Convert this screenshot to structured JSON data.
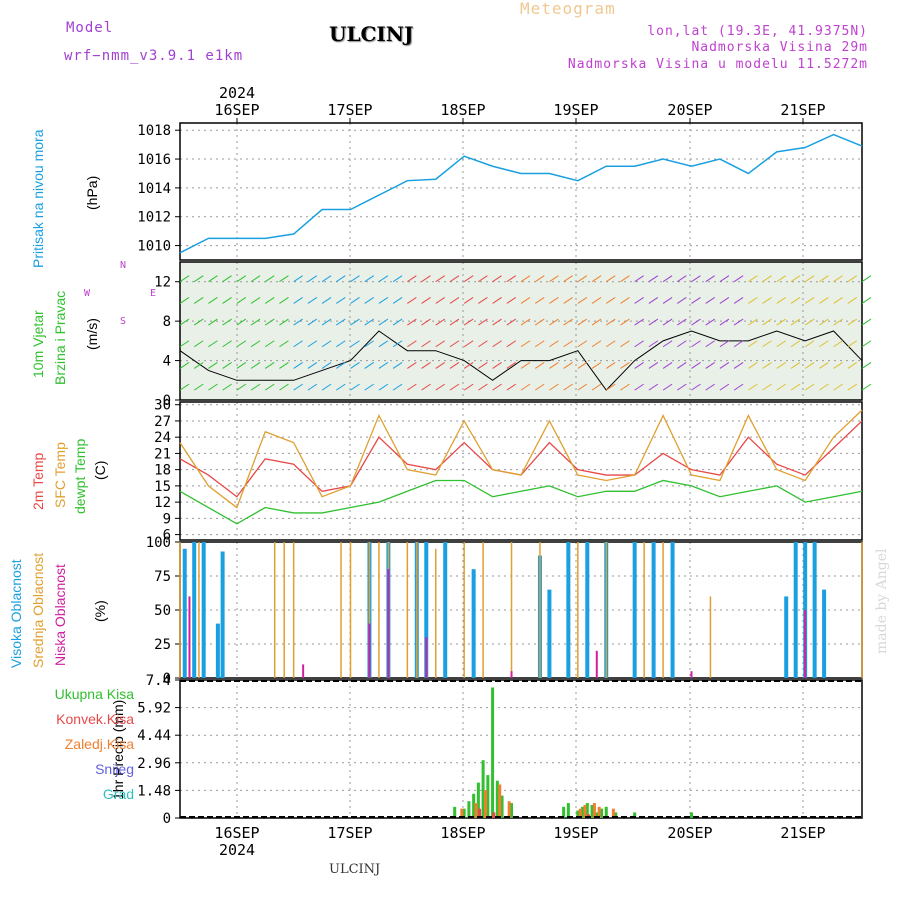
{
  "header": {
    "model_label": "Model",
    "model_name": "wrf−nmm_v3.9.1 e1km",
    "station": "ULCINJ",
    "product": "Meteogram",
    "lonlat": "lon,lat (19.3E, 41.9375N)",
    "altitude": "Nadmorska Visina 29m",
    "model_altitude": "Nadmorska Visina u modelu 11.5272m",
    "credit": "made by Angel",
    "footer_station": "ULCINJ"
  },
  "time_axis": {
    "year": "2024",
    "days": [
      "16SEP",
      "17SEP",
      "18SEP",
      "19SEP",
      "20SEP",
      "21SEP"
    ]
  },
  "colors": {
    "pressure": "#1aa0e0",
    "t2m": "#e84848",
    "tsfc": "#e0a030",
    "dewpt": "#30c030",
    "high": "#1aa0e0",
    "mid": "#e0a030",
    "low": "#d020a0",
    "wind_bg": "#e8f0e8"
  },
  "panels": {
    "pressure": {
      "label": "Pritisak na nivou mora",
      "unit": "(hPa)",
      "ticks": [
        "1010",
        "1012",
        "1014",
        "1016",
        "1018"
      ]
    },
    "wind": {
      "label1": "10m Vjetar",
      "label2": "Brzina i Pravac",
      "unit": "(m/s)",
      "ticks": [
        "0",
        "4",
        "8",
        "12"
      ],
      "compass": {
        "n": "N",
        "s": "S",
        "e": "E",
        "w": "W"
      }
    },
    "temp": {
      "label_t2m": "2m Temp",
      "label_sfc": "SFC Temp",
      "label_dew": "dewpt Temp",
      "unit": "(C)",
      "ticks": [
        "6",
        "9",
        "12",
        "15",
        "18",
        "21",
        "24",
        "27",
        "30"
      ]
    },
    "cloud": {
      "label_high": "Visoka Oblacnost",
      "label_mid": "Srednja Oblacnost",
      "label_low": "Niska Oblacnost",
      "unit": "(%)",
      "ticks": [
        "0",
        "25",
        "50",
        "75",
        "100"
      ]
    },
    "precip": {
      "unit_label": "1hr Precip (mm)",
      "ticks": [
        "0",
        "1.48",
        "2.96",
        "4.44",
        "5.92",
        "7.4"
      ],
      "legend": [
        "Ukupna Kisa",
        "Konvek.Kisa",
        "Zaledj.Kisa",
        "Snijeg",
        "Grad"
      ],
      "legend_colors": [
        "#30c030",
        "#e84848",
        "#f08030",
        "#6060e0",
        "#30c0c0"
      ]
    }
  },
  "chart_data": [
    {
      "type": "line",
      "title": "Pritisak na nivou mora",
      "ylabel": "(hPa)",
      "ylim": [
        1009,
        1018.5
      ],
      "series": [
        {
          "name": "Pritisak na nivou mora",
          "x": [
            0,
            6,
            12,
            18,
            24,
            30,
            36,
            42,
            48,
            54,
            60,
            66,
            72,
            78,
            84,
            90,
            96,
            102,
            108,
            114,
            120,
            126,
            132,
            138,
            144
          ],
          "values": [
            1009.5,
            1010.5,
            1010.5,
            1010.5,
            1010.8,
            1012.5,
            1012.5,
            1013.5,
            1014.5,
            1014.6,
            1016.2,
            1015.5,
            1015.0,
            1015.0,
            1014.5,
            1015.5,
            1015.5,
            1016.0,
            1015.5,
            1016.0,
            1015.0,
            1016.5,
            1016.8,
            1017.7,
            1016.9
          ]
        }
      ]
    },
    {
      "type": "line",
      "title": "10m Vjetar Brzina i Pravac",
      "ylabel": "(m/s)",
      "ylim": [
        0,
        14
      ],
      "series": [
        {
          "name": "10m Vjetar",
          "x": [
            0,
            6,
            12,
            18,
            24,
            30,
            36,
            42,
            48,
            54,
            60,
            66,
            72,
            78,
            84,
            90,
            96,
            102,
            108,
            114,
            120,
            126,
            132,
            138,
            144
          ],
          "values": [
            5,
            3,
            2,
            2,
            2,
            3,
            4,
            7,
            5,
            5,
            4,
            2,
            4,
            4,
            5,
            1,
            4,
            6,
            7,
            6,
            6,
            7,
            6,
            7,
            4
          ]
        }
      ]
    },
    {
      "type": "line",
      "title": "Temp",
      "ylabel": "(C)",
      "ylim": [
        5,
        30.5
      ],
      "series": [
        {
          "name": "2m Temp",
          "x": [
            0,
            6,
            12,
            18,
            24,
            30,
            36,
            42,
            48,
            54,
            60,
            66,
            72,
            78,
            84,
            90,
            96,
            102,
            108,
            114,
            120,
            126,
            132,
            138,
            144
          ],
          "values": [
            20,
            17,
            13,
            20,
            19,
            14,
            15,
            24,
            19,
            18,
            23,
            18,
            17,
            23,
            18,
            17,
            17,
            21,
            18,
            17,
            24,
            19,
            17,
            22,
            27
          ]
        },
        {
          "name": "SFC Temp",
          "x": [
            0,
            6,
            12,
            18,
            24,
            30,
            36,
            42,
            48,
            54,
            60,
            66,
            72,
            78,
            84,
            90,
            96,
            102,
            108,
            114,
            120,
            126,
            132,
            138,
            144
          ],
          "values": [
            23,
            15,
            11,
            25,
            23,
            13,
            15,
            28,
            18,
            17,
            27,
            18,
            17,
            27,
            17,
            16,
            17,
            28,
            17,
            16,
            28,
            18,
            16,
            24,
            29
          ]
        },
        {
          "name": "dewpt Temp",
          "x": [
            0,
            6,
            12,
            18,
            24,
            30,
            36,
            42,
            48,
            54,
            60,
            66,
            72,
            78,
            84,
            90,
            96,
            102,
            108,
            114,
            120,
            126,
            132,
            138,
            144
          ],
          "values": [
            14,
            11,
            8,
            11,
            10,
            10,
            11,
            12,
            14,
            16,
            16,
            13,
            14,
            15,
            13,
            14,
            14,
            16,
            15,
            13,
            14,
            15,
            12,
            13,
            14
          ]
        }
      ]
    },
    {
      "type": "bar",
      "title": "Oblacnost",
      "ylabel": "(%)",
      "ylim": [
        0,
        100
      ],
      "series": [
        {
          "name": "Visoka Oblacnost",
          "x": [
            1,
            3,
            5,
            8,
            9,
            40,
            44,
            50,
            52,
            56,
            62,
            76,
            78,
            82,
            86,
            90,
            96,
            100,
            104,
            128,
            130,
            132,
            134,
            136
          ],
          "values": [
            95,
            100,
            100,
            40,
            93,
            100,
            100,
            100,
            100,
            100,
            80,
            90,
            65,
            100,
            100,
            100,
            100,
            100,
            100,
            60,
            100,
            100,
            100,
            65
          ]
        },
        {
          "name": "Srednja Oblacnost",
          "x": [
            0,
            4,
            20,
            22,
            24,
            34,
            36,
            40,
            42,
            44,
            48,
            50,
            54,
            60,
            64,
            70,
            76,
            84,
            90,
            98,
            102,
            112,
            144
          ],
          "values": [
            100,
            100,
            100,
            100,
            100,
            100,
            100,
            100,
            100,
            100,
            100,
            100,
            95,
            100,
            100,
            100,
            100,
            100,
            100,
            100,
            100,
            60,
            100
          ]
        },
        {
          "name": "Niska Oblacnost",
          "x": [
            2,
            26,
            40,
            44,
            52,
            70,
            88,
            108,
            132
          ],
          "values": [
            60,
            10,
            40,
            80,
            30,
            5,
            20,
            5,
            50
          ]
        }
      ]
    },
    {
      "type": "bar",
      "title": "1hr Precip",
      "ylabel": "1hr Precip (mm)",
      "ylim": [
        0,
        7.4
      ],
      "series": [
        {
          "name": "Ukupna Kisa",
          "x": [
            58,
            60,
            61,
            62,
            63,
            64,
            65,
            66,
            67,
            68,
            70,
            81,
            82,
            84,
            85,
            86,
            87,
            88,
            89,
            90,
            92,
            96,
            108
          ],
          "values": [
            0.6,
            0.5,
            0.9,
            1.3,
            1.9,
            3.1,
            2.3,
            7.0,
            2.0,
            1.2,
            0.8,
            0.6,
            0.8,
            0.4,
            0.6,
            0.8,
            0.7,
            0.3,
            0.5,
            0.6,
            0.3,
            0.3,
            0.3
          ]
        },
        {
          "name": "Konvek.Kisa",
          "x": [
            63,
            66,
            86
          ],
          "values": [
            0.5,
            0.3,
            0.2
          ]
        },
        {
          "name": "Zaledj.Kisa",
          "x": [
            59,
            62,
            64,
            67,
            69,
            84,
            85,
            87,
            88,
            91
          ],
          "values": [
            0.5,
            0.8,
            1.5,
            1.8,
            0.9,
            0.5,
            0.7,
            0.8,
            0.6,
            0.5
          ]
        }
      ]
    }
  ]
}
